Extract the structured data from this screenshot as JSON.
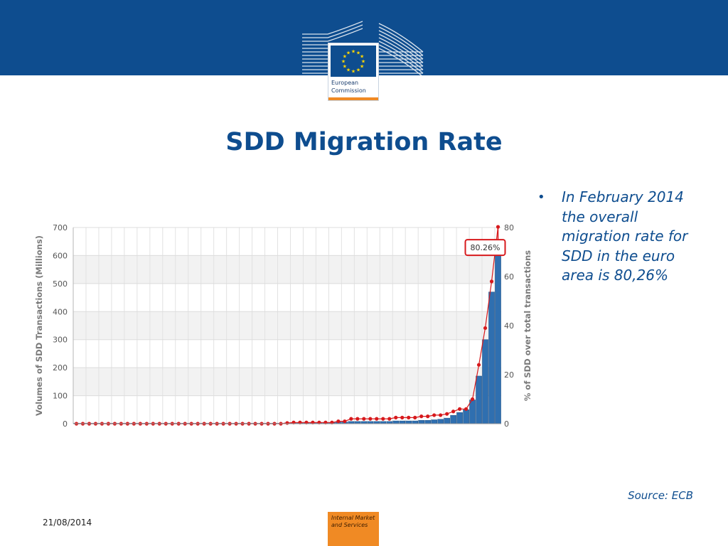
{
  "slide": {
    "title": "SDD Migration Rate",
    "bullet": "In February 2014 the overall migration rate for SDD in the euro area is 80,26%",
    "source": "Source: ECB",
    "date": "21/08/2014",
    "logo_text_1": "European",
    "logo_text_2": "Commission",
    "footer_text_1": "Internal Market",
    "footer_text_2": "and Services"
  },
  "colors": {
    "brand_blue": "#0e4d8f",
    "orange": "#f08a24",
    "bar_blue": "#2f6fb0",
    "line_red": "#d7191c",
    "callout_red": "#d7191c"
  },
  "chart_data": {
    "type": "bar",
    "series": [
      {
        "type": "bar",
        "axis": "left",
        "values": [
          2,
          2,
          2,
          2,
          2,
          2,
          2,
          2,
          2,
          2,
          2,
          2,
          2,
          2,
          2,
          2,
          2,
          2,
          2,
          2,
          2,
          2,
          2,
          2,
          2,
          2,
          2,
          2,
          2,
          2,
          2,
          2,
          2,
          3,
          3,
          3,
          4,
          4,
          4,
          4,
          4,
          6,
          6,
          8,
          8,
          8,
          8,
          8,
          8,
          8,
          10,
          10,
          10,
          10,
          12,
          12,
          14,
          16,
          20,
          30,
          40,
          50,
          85,
          170,
          300,
          470,
          620
        ]
      },
      {
        "type": "line",
        "axis": "right",
        "values": [
          0,
          0,
          0,
          0,
          0,
          0,
          0,
          0,
          0,
          0,
          0,
          0,
          0,
          0,
          0,
          0,
          0,
          0,
          0,
          0,
          0,
          0,
          0,
          0,
          0,
          0,
          0,
          0,
          0,
          0,
          0,
          0,
          0,
          0.3,
          0.5,
          0.5,
          0.5,
          0.5,
          0.5,
          0.5,
          0.5,
          1,
          1,
          2,
          2,
          2,
          2,
          2,
          2,
          2,
          2.5,
          2.5,
          2.5,
          2.5,
          3,
          3,
          3.5,
          3.5,
          4,
          5,
          6,
          6,
          10,
          24,
          39,
          58,
          80.26
        ]
      }
    ],
    "y_left": {
      "label": "Volumes of SDD Transactions (Millions)",
      "ticks": [
        0,
        100,
        200,
        300,
        400,
        500,
        600,
        700
      ],
      "range": [
        0,
        700
      ]
    },
    "y_right": {
      "label": "% of SDD over total transactions",
      "ticks": [
        0,
        20,
        40,
        60,
        80
      ],
      "range": [
        0,
        80
      ]
    },
    "callout": "80.26%",
    "grid": true,
    "legend": "none"
  }
}
